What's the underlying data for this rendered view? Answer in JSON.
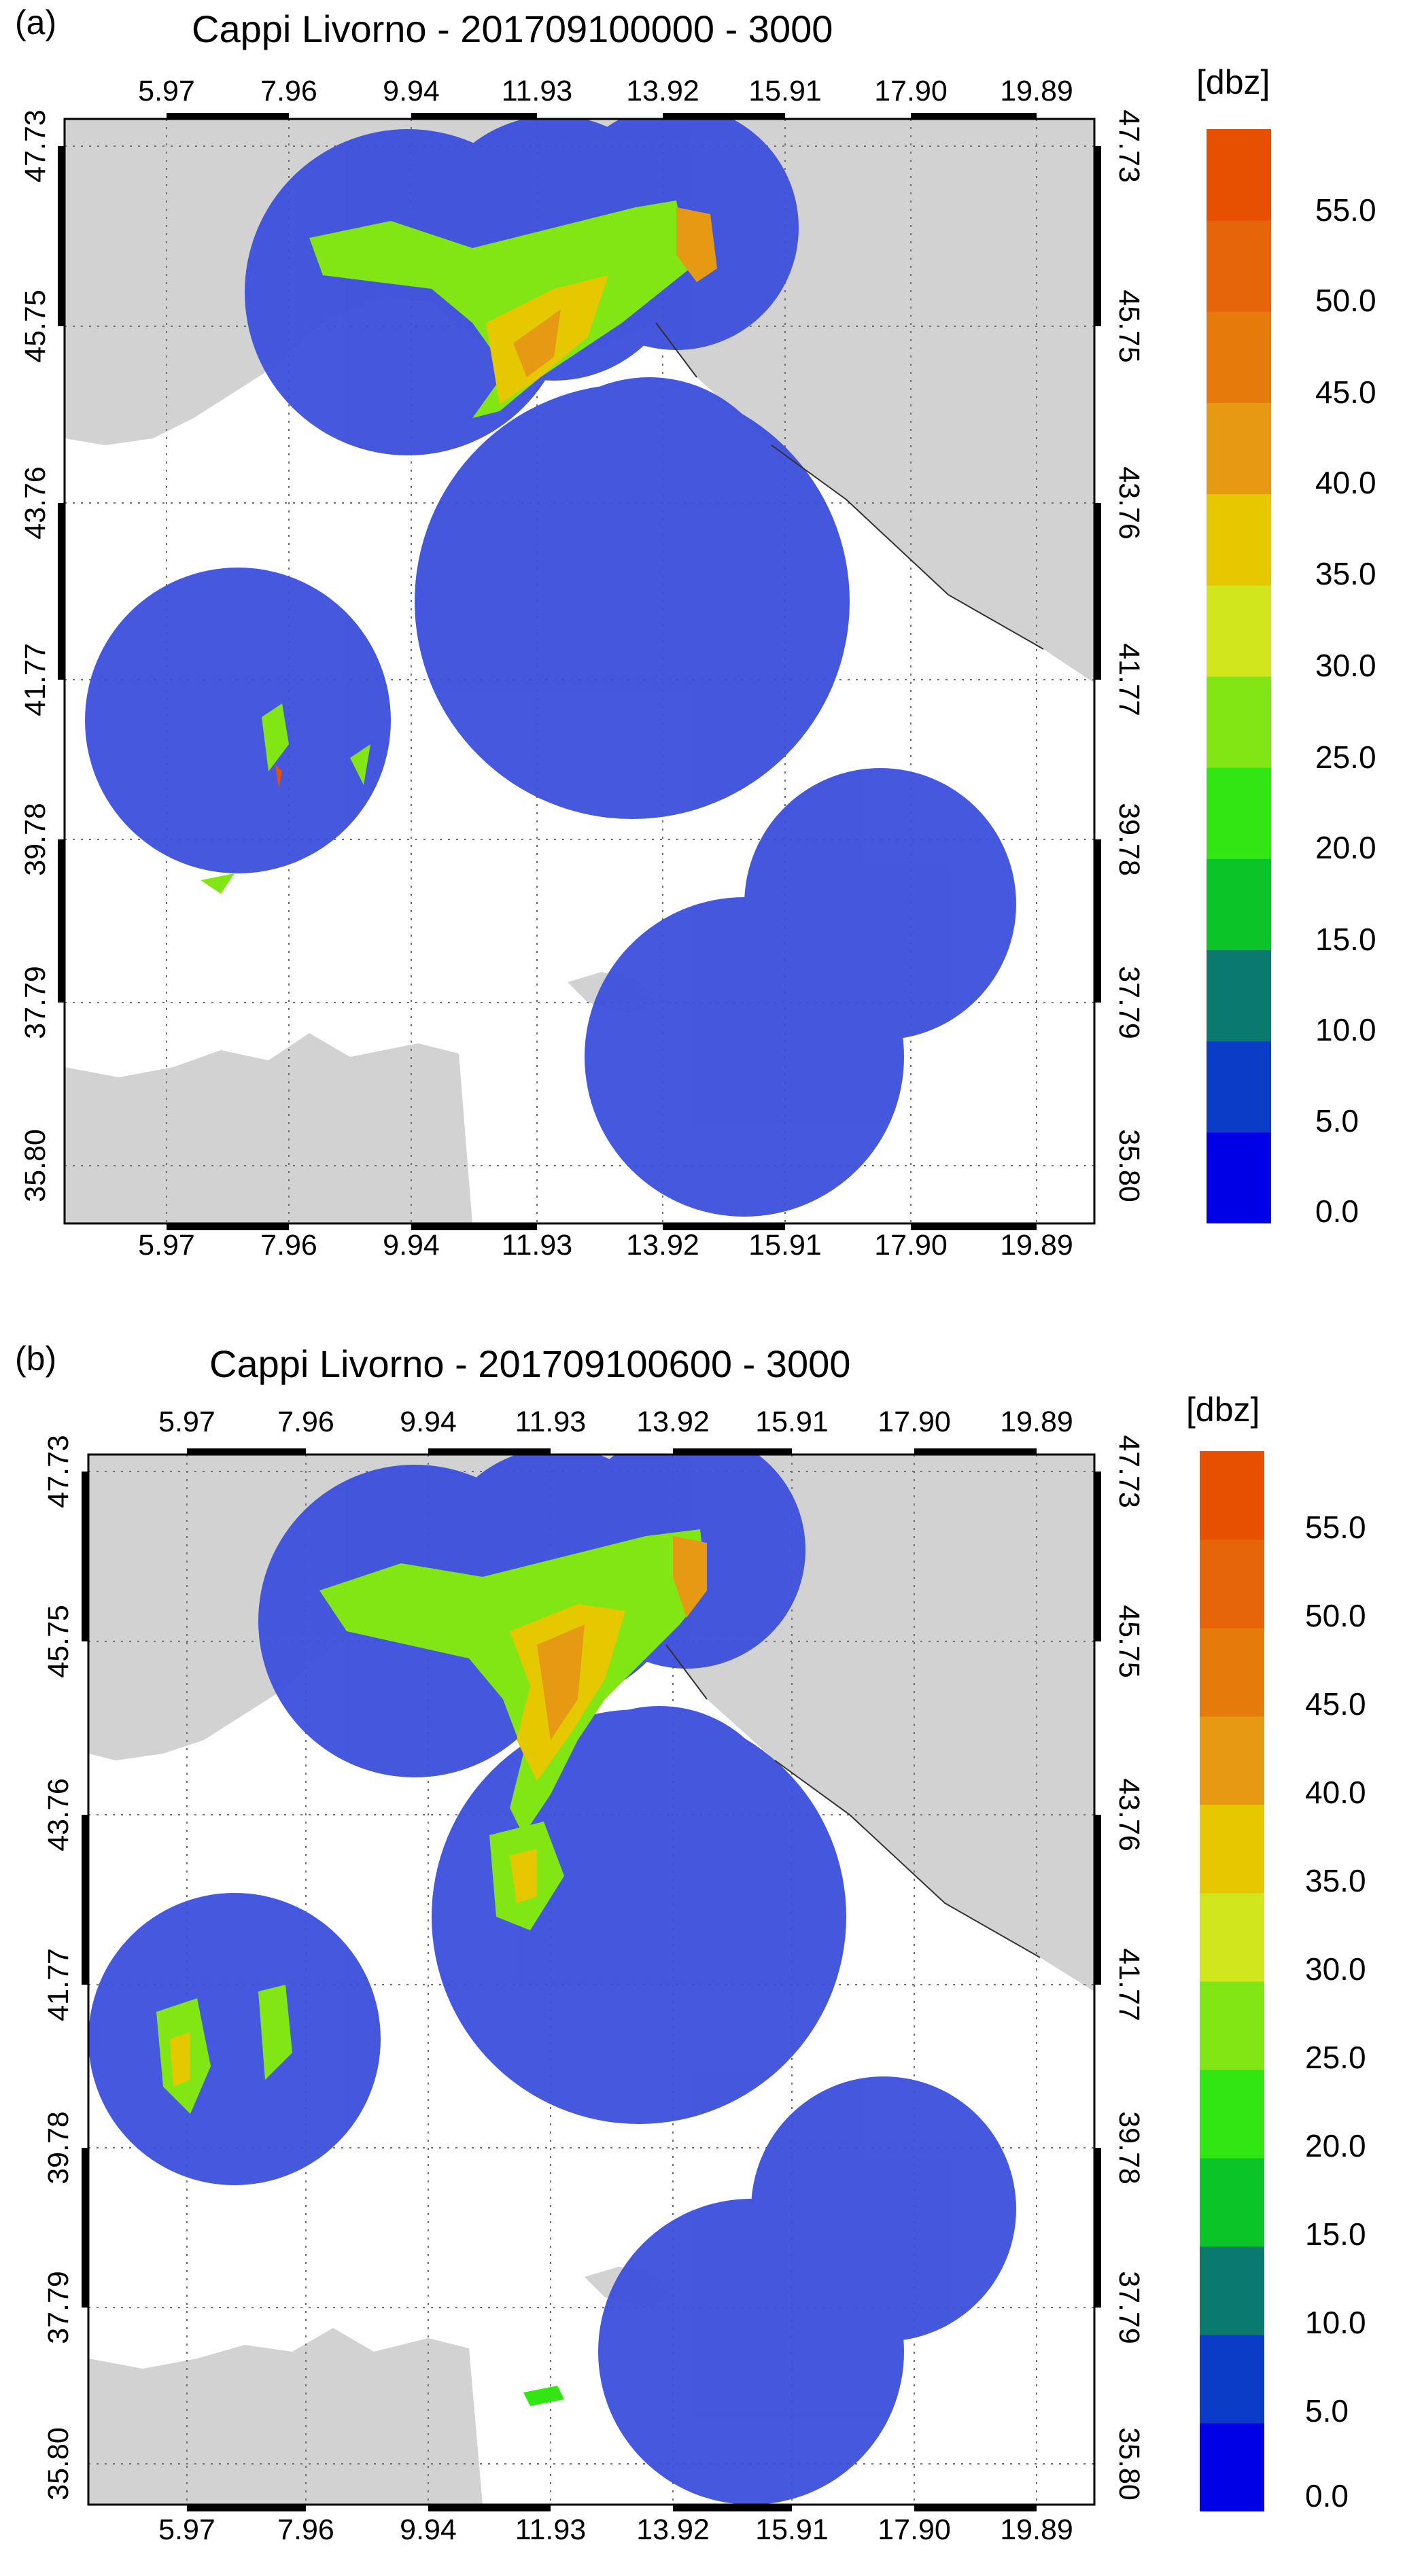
{
  "panels": [
    {
      "label": "(a)",
      "title": "Cappi Livorno - 201709100000 - 3000",
      "x_ticks": [
        "5.97",
        "7.96",
        "9.94",
        "11.93",
        "13.92",
        "15.91",
        "17.90",
        "19.89"
      ],
      "y_ticks": [
        "47.73",
        "45.75",
        "43.76",
        "41.77",
        "39.78",
        "37.79",
        "35.80"
      ],
      "colorbar_unit": "[dbz]",
      "colorbar_labels": [
        "55.0",
        "50.0",
        "45.0",
        "40.0",
        "35.0",
        "30.0",
        "25.0",
        "20.0",
        "15.0",
        "10.0",
        "5.0",
        "0.0"
      ]
    },
    {
      "label": "(b)",
      "title": "Cappi Livorno - 201709100600 - 3000",
      "x_ticks": [
        "5.97",
        "7.96",
        "9.94",
        "11.93",
        "13.92",
        "15.91",
        "17.90",
        "19.89"
      ],
      "y_ticks": [
        "47.73",
        "45.75",
        "43.76",
        "41.77",
        "39.78",
        "37.79",
        "35.80"
      ],
      "colorbar_unit": "[dbz]",
      "colorbar_labels": [
        "55.0",
        "50.0",
        "45.0",
        "40.0",
        "35.0",
        "30.0",
        "25.0",
        "20.0",
        "15.0",
        "10.0",
        "5.0",
        "0.0"
      ]
    }
  ],
  "colorbar_colors": [
    "#0000e6",
    "#0a3cc8",
    "#0a7a6e",
    "#0ac428",
    "#32e614",
    "#82e614",
    "#d2e61e",
    "#e6c800",
    "#e69a14",
    "#e67a0a",
    "#e6640a",
    "#e65000"
  ],
  "land_color": "#d2d2d2",
  "sea_color": "#ffffff",
  "radar_color": "#3c50dc"
}
